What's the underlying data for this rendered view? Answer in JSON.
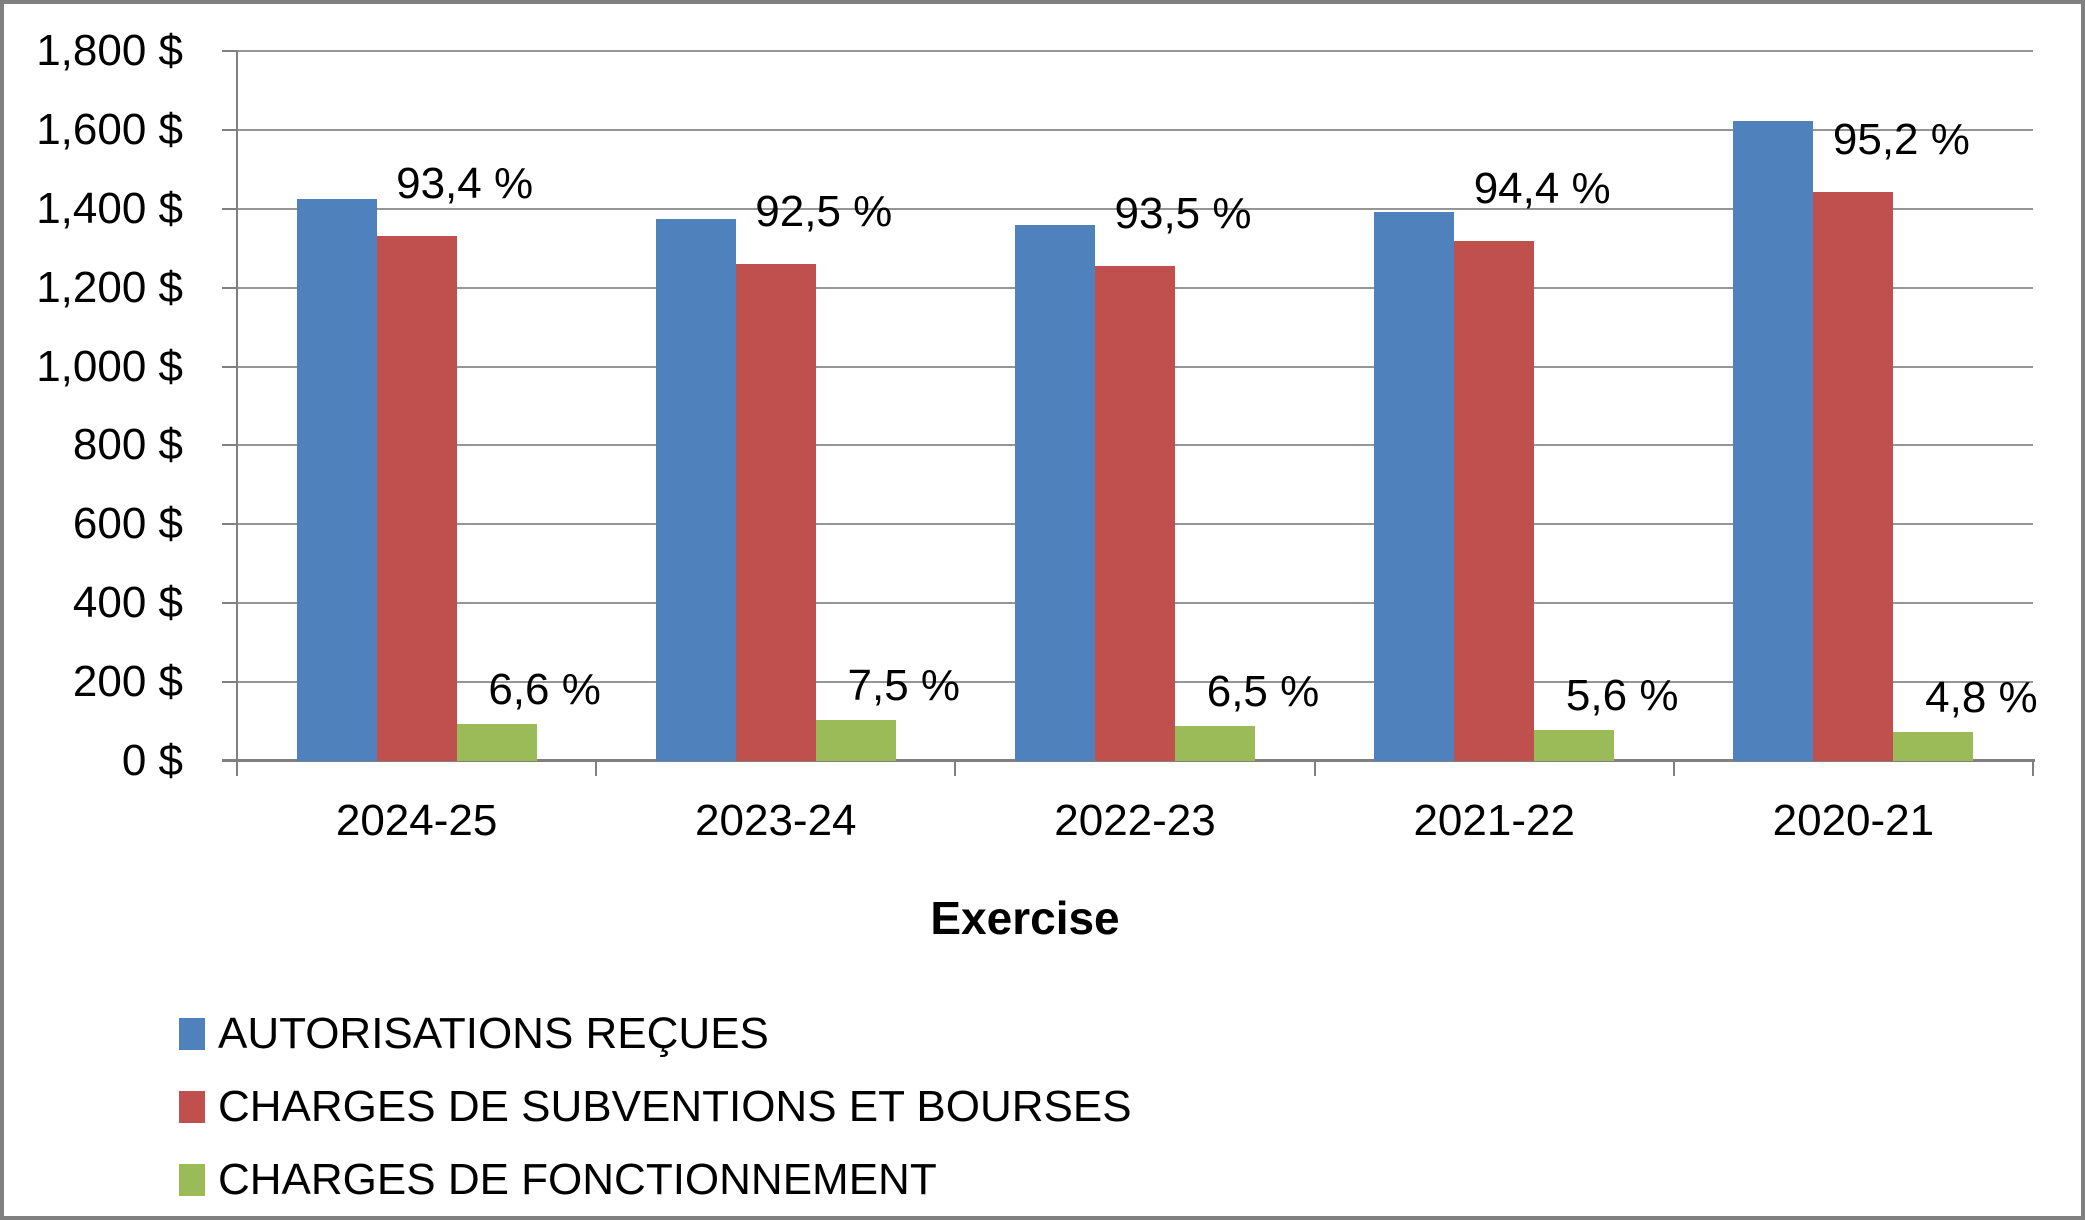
{
  "chart_data": {
    "type": "bar",
    "title": "",
    "xlabel": "Exercise",
    "ylabel": "",
    "categories": [
      "2024-25",
      "2023-24",
      "2022-23",
      "2021-22",
      "2020-21"
    ],
    "series": [
      {
        "name": "AUTORISATIONS REÇUES",
        "color": "#4F81BD",
        "values": [
          1425,
          1374,
          1359,
          1392,
          1623
        ],
        "point_labels": [
          "",
          "",
          "",
          "",
          ""
        ]
      },
      {
        "name": "CHARGES DE SUBVENTIONS ET BOURSES",
        "color": "#C0504D",
        "values": [
          1331,
          1260,
          1255,
          1318,
          1443
        ],
        "point_labels": [
          "93,4 %",
          "92,5 %",
          "93,5 %",
          "94,4 %",
          "95,2 %"
        ]
      },
      {
        "name": "CHARGES DE FONCTIONNEMENT",
        "color": "#9BBB59",
        "values": [
          94,
          104,
          89,
          79,
          74
        ],
        "point_labels": [
          "6,6 %",
          "7,5 %",
          "6,5 %",
          "5,6 %",
          "4,8 %"
        ]
      }
    ],
    "y_axis": {
      "min": 0,
      "max": 1800,
      "step": 200,
      "tick_labels": [
        "0 $",
        "200 $",
        "400 $",
        "600 $",
        "800 $",
        "1,000 $",
        "1,200 $",
        "1,400 $",
        "1,600 $",
        "1,800 $"
      ]
    },
    "grid": true,
    "legend_position": "bottom-left"
  },
  "colors": {
    "background": "#FFFFFF",
    "border": "#808080",
    "axis": "#808080",
    "gridline": "#969696",
    "text": "#000000"
  }
}
